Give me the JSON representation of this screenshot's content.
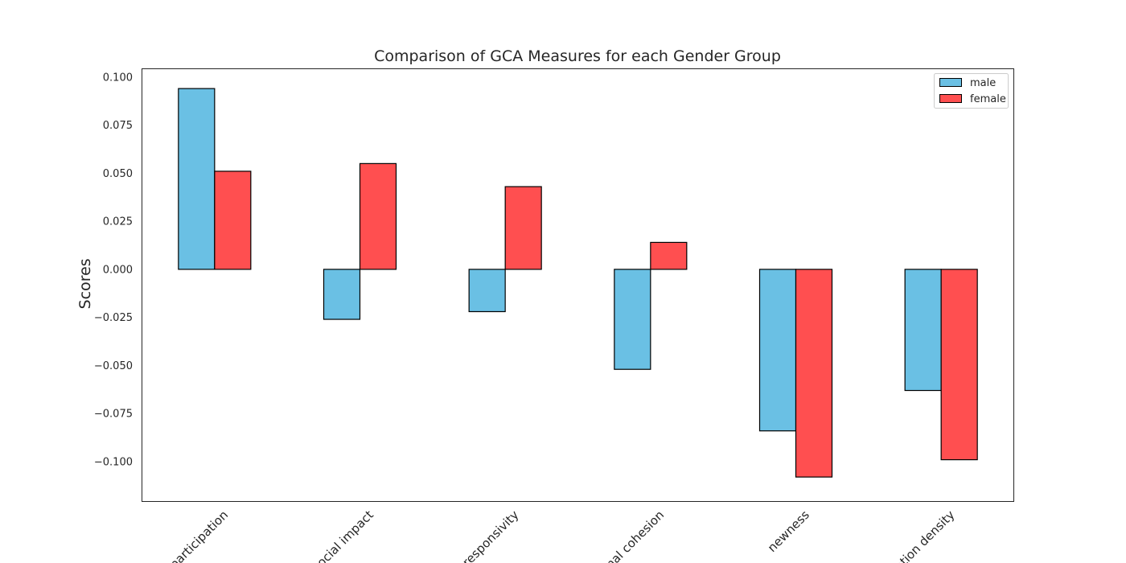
{
  "chart_data": {
    "type": "bar",
    "title": "Comparison of GCA Measures for each Gender Group",
    "xlabel": "",
    "ylabel": "Scores",
    "categories": [
      "participation",
      "social impact",
      "responsivity",
      "internal cohesion",
      "newness",
      "communication density"
    ],
    "category_labels_visible": [
      "participation",
      "social impact",
      "responsivity",
      "nal cohesion",
      "newness",
      "ation density"
    ],
    "series": [
      {
        "name": "male",
        "color": "#6ac0e4",
        "values": [
          0.094,
          -0.026,
          -0.022,
          -0.052,
          -0.084,
          -0.063
        ]
      },
      {
        "name": "female",
        "color": "#ff4f50",
        "values": [
          0.051,
          0.055,
          0.043,
          0.014,
          -0.108,
          -0.099
        ]
      }
    ],
    "ylim": [
      -0.1205,
      0.1045
    ],
    "yticks": [
      0.1,
      0.075,
      0.05,
      0.025,
      0.0,
      -0.025,
      -0.05,
      -0.075,
      -0.1
    ],
    "ytick_labels": [
      "0.100",
      "0.075",
      "0.050",
      "0.025",
      "0.000",
      "−0.025",
      "−0.050",
      "−0.075",
      "−0.100"
    ],
    "grid": false,
    "legend_position": "top-right"
  }
}
